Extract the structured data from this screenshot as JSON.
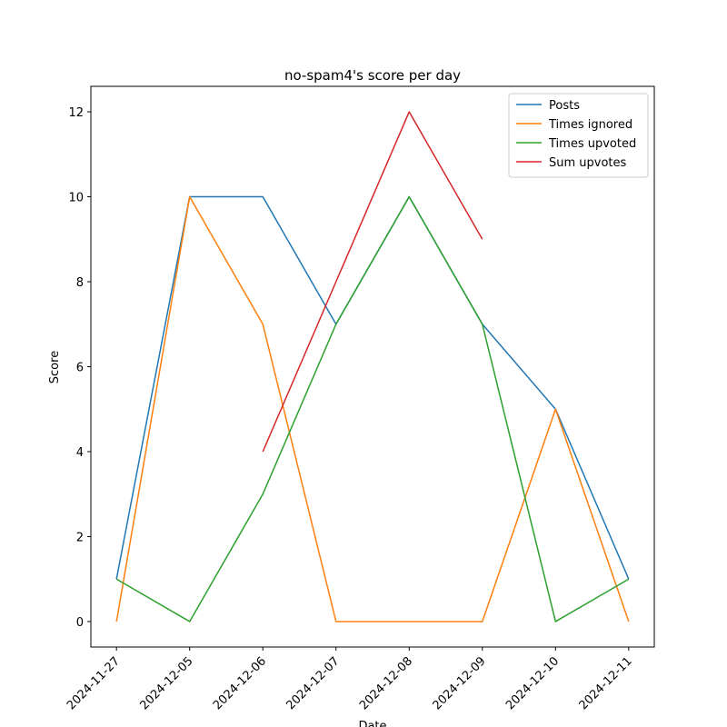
{
  "chart_data": {
    "type": "line",
    "title": "no-spam4's score per day",
    "x_label": "Date",
    "y_label": "Score",
    "categories": [
      "2024-11-27",
      "2024-12-05",
      "2024-12-06",
      "2024-12-07",
      "2024-12-08",
      "2024-12-09",
      "2024-12-10",
      "2024-12-11"
    ],
    "series": [
      {
        "name": "Posts",
        "color": "#1f77b4",
        "values": [
          1,
          10,
          10,
          7,
          10,
          7,
          5,
          1
        ]
      },
      {
        "name": "Times ignored",
        "color": "#ff7f0e",
        "values": [
          0,
          10,
          7,
          0,
          0,
          0,
          5,
          0
        ]
      },
      {
        "name": "Times upvoted",
        "color": "#2ca02c",
        "values": [
          1,
          0,
          3,
          7,
          10,
          7,
          0,
          1
        ]
      },
      {
        "name": "Sum upvotes",
        "color": "#d62728",
        "values": [
          null,
          null,
          4,
          8,
          12,
          9,
          null,
          null
        ]
      }
    ],
    "ylim": [
      -0.6,
      12.6
    ],
    "yticks": [
      0,
      2,
      4,
      6,
      8,
      10,
      12
    ],
    "legend": "upper right"
  }
}
